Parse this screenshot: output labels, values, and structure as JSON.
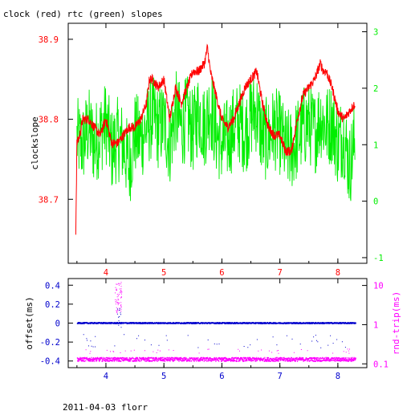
{
  "title": "clock (red) rtc (green) slopes",
  "footer": "2011-04-03 florr",
  "colors": {
    "red": "#ff0000",
    "green": "#00ee00",
    "blue": "#0000cc",
    "magenta": "#ff00ff",
    "axis": "#000000"
  },
  "chart_data": [
    {
      "type": "line",
      "ylabel": "clockslope",
      "x_range": [
        3.35,
        8.5
      ],
      "x_ticks": [
        "4",
        "5",
        "6",
        "7",
        "8"
      ],
      "x_tick_values": [
        4,
        5,
        6,
        7,
        8
      ],
      "y_left_range": [
        38.62,
        38.92
      ],
      "y_left_ticks": [
        "38.7",
        "38.8",
        "38.9"
      ],
      "y_left_tick_values": [
        38.7,
        38.8,
        38.9
      ],
      "y_right_range": [
        -1.1,
        3.15
      ],
      "y_right_ticks": [
        "-1",
        "0",
        "1",
        "2",
        "3"
      ],
      "y_right_tick_values": [
        -1,
        0,
        1,
        2,
        3
      ],
      "series": [
        {
          "color": "red",
          "axis": "left",
          "x": [
            3.48,
            3.5,
            3.55,
            3.6,
            3.7,
            3.8,
            3.9,
            4.0,
            4.1,
            4.2,
            4.3,
            4.4,
            4.5,
            4.6,
            4.7,
            4.75,
            4.8,
            4.9,
            5.0,
            5.1,
            5.2,
            5.3,
            5.4,
            5.5,
            5.6,
            5.7,
            5.75,
            5.8,
            5.9,
            6.0,
            6.1,
            6.2,
            6.3,
            6.4,
            6.5,
            6.6,
            6.7,
            6.8,
            6.9,
            7.0,
            7.1,
            7.2,
            7.3,
            7.4,
            7.5,
            7.6,
            7.7,
            7.75,
            7.8,
            7.9,
            8.0,
            8.1,
            8.2,
            8.3
          ],
          "y": [
            38.66,
            38.77,
            38.78,
            38.8,
            38.8,
            38.79,
            38.78,
            38.8,
            38.77,
            38.77,
            38.78,
            38.79,
            38.79,
            38.8,
            38.82,
            38.85,
            38.85,
            38.84,
            38.85,
            38.8,
            38.84,
            38.82,
            38.84,
            38.86,
            38.86,
            38.87,
            38.89,
            38.86,
            38.83,
            38.8,
            38.79,
            38.8,
            38.82,
            38.84,
            38.85,
            38.86,
            38.82,
            38.79,
            38.78,
            38.78,
            38.76,
            38.76,
            38.8,
            38.83,
            38.84,
            38.85,
            38.87,
            38.86,
            38.86,
            38.84,
            38.81,
            38.8,
            38.81,
            38.82
          ]
        },
        {
          "color": "green",
          "axis": "right",
          "x": [
            3.5,
            3.6,
            3.7,
            3.8,
            3.9,
            4.0,
            4.1,
            4.2,
            4.3,
            4.4,
            4.5,
            4.6,
            4.7,
            4.8,
            4.9,
            5.0,
            5.1,
            5.2,
            5.3,
            5.4,
            5.5,
            5.6,
            5.7,
            5.8,
            5.9,
            6.0,
            6.1,
            6.2,
            6.3,
            6.4,
            6.5,
            6.6,
            6.7,
            6.8,
            6.9,
            7.0,
            7.1,
            7.2,
            7.3,
            7.4,
            7.5,
            7.6,
            7.7,
            7.8,
            7.9,
            8.0,
            8.1,
            8.2,
            8.3
          ],
          "y": [
            1.1,
            1.0,
            1.3,
            1.0,
            1.2,
            1.4,
            0.9,
            1.1,
            1.0,
            0.6,
            1.2,
            1.1,
            1.3,
            1.5,
            1.3,
            1.4,
            1.0,
            1.6,
            1.3,
            1.5,
            1.2,
            1.6,
            1.3,
            1.7,
            1.2,
            1.0,
            1.1,
            1.3,
            1.4,
            1.2,
            1.5,
            1.6,
            1.1,
            1.1,
            1.3,
            1.2,
            0.9,
            0.9,
            1.1,
            1.3,
            1.4,
            1.2,
            1.5,
            1.3,
            1.4,
            1.0,
            1.2,
            0.6,
            1.1
          ]
        }
      ]
    },
    {
      "type": "scatter",
      "ylabel": "offset(ms)",
      "y2label": "rnd-trip(ms)",
      "x_range": [
        3.35,
        8.5
      ],
      "x_ticks": [
        "4",
        "5",
        "6",
        "7",
        "8"
      ],
      "x_tick_values": [
        4,
        5,
        6,
        7,
        8
      ],
      "y_left_range": [
        -0.47,
        0.47
      ],
      "y_left_ticks": [
        "0.4",
        "0.2",
        "0",
        "-0.2",
        "-0.4"
      ],
      "y_left_tick_values": [
        0.4,
        0.2,
        0,
        -0.2,
        -0.4
      ],
      "y_right_scale": "log",
      "y_right_range": [
        0.08,
        15
      ],
      "y_right_ticks": [
        "10",
        "1",
        "0.1"
      ],
      "y_right_tick_values": [
        10,
        1,
        0.1
      ],
      "series": [
        {
          "color": "blue",
          "axis": "left",
          "x_range": [
            3.5,
            8.3
          ],
          "y_level": 0.0,
          "y_spread": 0.004
        },
        {
          "color": "magenta",
          "axis": "right",
          "x_range": [
            3.5,
            8.3
          ],
          "y_level": 0.13,
          "y_spread_factor": 1.12
        }
      ]
    }
  ]
}
